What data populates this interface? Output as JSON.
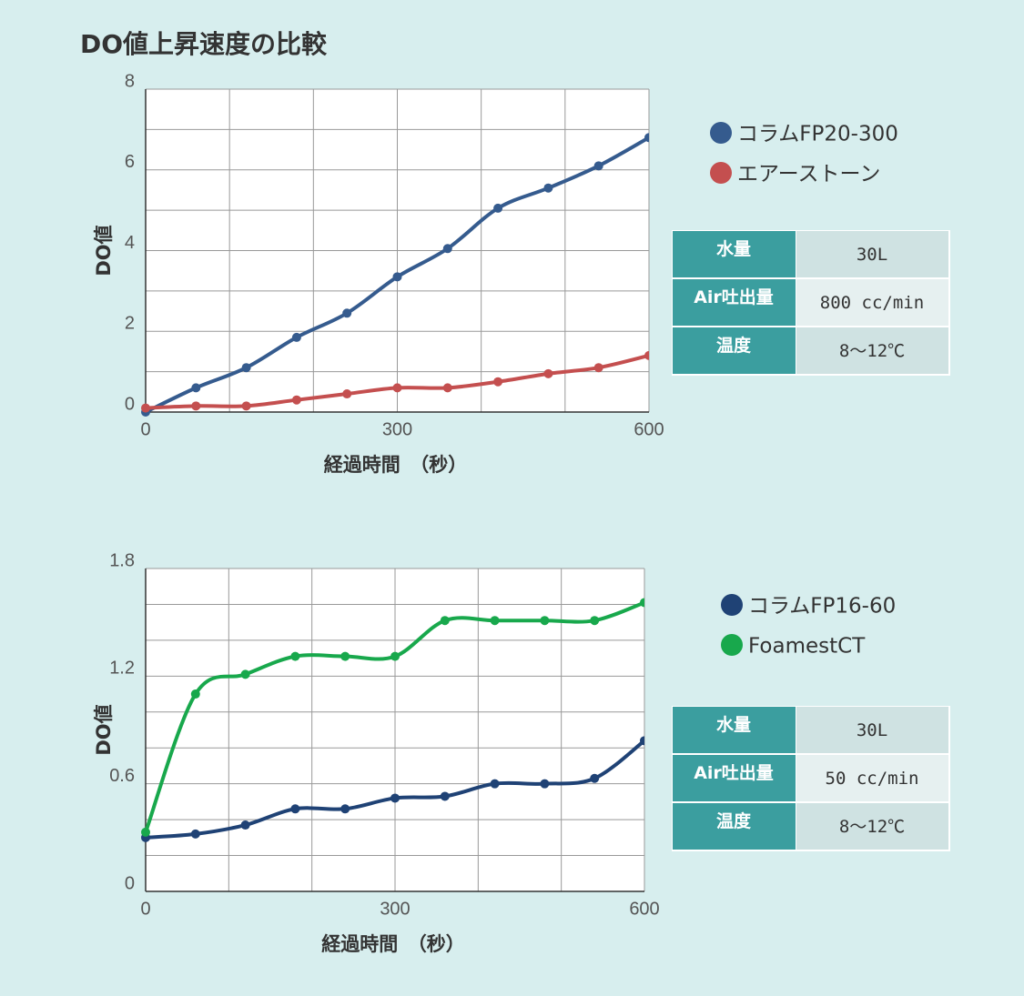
{
  "title": "DO値上昇速度の比較",
  "chart_data": [
    {
      "type": "line",
      "xlabel": "経過時間　（秒）",
      "ylabel": "DO値",
      "x": [
        0,
        60,
        120,
        180,
        240,
        300,
        360,
        420,
        480,
        540,
        600
      ],
      "xlim": [
        0,
        600
      ],
      "xticks": [
        0,
        300,
        600
      ],
      "ylim": [
        0,
        8
      ],
      "yticks": [
        0,
        2,
        4,
        6,
        8
      ],
      "grid": true,
      "series": [
        {
          "name": "コラムFP20-300",
          "color": "#355b8e",
          "values": [
            0,
            0.6,
            1.1,
            1.85,
            2.45,
            3.35,
            4.05,
            5.05,
            5.55,
            6.1,
            6.8
          ]
        },
        {
          "name": "エアーストーン",
          "color": "#c44f4f",
          "values": [
            0.1,
            0.15,
            0.15,
            0.3,
            0.45,
            0.6,
            0.6,
            0.75,
            0.95,
            1.1,
            1.4
          ]
        }
      ]
    },
    {
      "type": "line",
      "xlabel": "経過時間　（秒）",
      "ylabel": "DO値",
      "x": [
        0,
        60,
        120,
        180,
        240,
        300,
        360,
        420,
        480,
        540,
        600
      ],
      "xlim": [
        0,
        600
      ],
      "xticks": [
        0,
        300,
        600
      ],
      "ylim": [
        0,
        1.8
      ],
      "yticks": [
        0,
        0.6,
        1.2,
        1.8
      ],
      "grid": true,
      "series": [
        {
          "name": "コラムFP16-60",
          "color": "#1f4275",
          "values": [
            0.3,
            0.32,
            0.37,
            0.46,
            0.46,
            0.52,
            0.53,
            0.6,
            0.6,
            0.63,
            0.84
          ]
        },
        {
          "name": "FoamestCT",
          "color": "#18a84c",
          "values": [
            0.33,
            1.1,
            1.21,
            1.31,
            1.31,
            1.31,
            1.51,
            1.51,
            1.51,
            1.51,
            1.61
          ]
        }
      ]
    }
  ],
  "tables": [
    {
      "rows": [
        [
          "水量",
          "30L"
        ],
        [
          "Air吐出量",
          "800 cc/min"
        ],
        [
          "温度",
          "8～12℃"
        ]
      ]
    },
    {
      "rows": [
        [
          "水量",
          "30L"
        ],
        [
          "Air吐出量",
          "50 cc/min"
        ],
        [
          "温度",
          "8～12℃"
        ]
      ]
    }
  ]
}
